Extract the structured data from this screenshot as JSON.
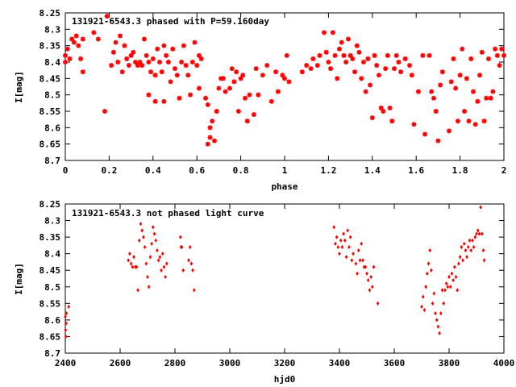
{
  "chart_data": [
    {
      "type": "scatter",
      "title": "131921-6543.3 phased with P=59.160day",
      "xlabel": "phase",
      "ylabel": "I[mag]",
      "xlim": [
        0,
        2
      ],
      "ylim": [
        8.25,
        8.7
      ],
      "y_inverted": true,
      "xticks": [
        0,
        0.2,
        0.4,
        0.6,
        0.8,
        1,
        1.2,
        1.4,
        1.6,
        1.8,
        2
      ],
      "xticklabels": [
        "0",
        "0.2",
        "0.4",
        "0.6",
        "0.8",
        "1",
        "1.2",
        "1.4",
        "1.6",
        "1.8",
        "2"
      ],
      "yticks": [
        8.25,
        8.3,
        8.35,
        8.4,
        8.45,
        8.5,
        8.55,
        8.6,
        8.65,
        8.7
      ],
      "yticklabels": [
        "8.25",
        "8.3",
        "8.35",
        "8.4",
        "8.45",
        "8.5",
        "8.55",
        "8.6",
        "8.65",
        "8.7"
      ],
      "marker": "star",
      "color": "#ff0000",
      "grid": false,
      "points": [
        [
          0.0,
          8.38
        ],
        [
          0.0,
          8.4
        ],
        [
          0.01,
          8.36
        ],
        [
          0.02,
          8.39
        ],
        [
          0.03,
          8.33
        ],
        [
          0.04,
          8.34
        ],
        [
          0.05,
          8.32
        ],
        [
          0.06,
          8.35
        ],
        [
          0.07,
          8.39
        ],
        [
          0.08,
          8.43
        ],
        [
          0.08,
          8.33
        ],
        [
          0.13,
          8.31
        ],
        [
          0.15,
          8.33
        ],
        [
          0.18,
          8.55
        ],
        [
          0.19,
          8.26
        ],
        [
          0.21,
          8.41
        ],
        [
          0.22,
          8.37
        ],
        [
          0.23,
          8.34
        ],
        [
          0.24,
          8.4
        ],
        [
          0.25,
          8.32
        ],
        [
          0.26,
          8.43
        ],
        [
          0.27,
          8.35
        ],
        [
          0.28,
          8.39
        ],
        [
          0.29,
          8.41
        ],
        [
          0.3,
          8.38
        ],
        [
          0.31,
          8.37
        ],
        [
          0.32,
          8.4
        ],
        [
          0.33,
          8.41
        ],
        [
          0.34,
          8.4
        ],
        [
          0.35,
          8.41
        ],
        [
          0.36,
          8.33
        ],
        [
          0.37,
          8.38
        ],
        [
          0.38,
          8.5
        ],
        [
          0.38,
          8.4
        ],
        [
          0.39,
          8.43
        ],
        [
          0.4,
          8.39
        ],
        [
          0.41,
          8.52
        ],
        [
          0.41,
          8.44
        ],
        [
          0.42,
          8.36
        ],
        [
          0.43,
          8.4
        ],
        [
          0.44,
          8.43
        ],
        [
          0.45,
          8.52
        ],
        [
          0.45,
          8.35
        ],
        [
          0.46,
          8.38
        ],
        [
          0.47,
          8.4
        ],
        [
          0.48,
          8.46
        ],
        [
          0.49,
          8.36
        ],
        [
          0.5,
          8.42
        ],
        [
          0.51,
          8.44
        ],
        [
          0.52,
          8.51
        ],
        [
          0.53,
          8.4
        ],
        [
          0.54,
          8.35
        ],
        [
          0.55,
          8.41
        ],
        [
          0.56,
          8.44
        ],
        [
          0.57,
          8.5
        ],
        [
          0.58,
          8.4
        ],
        [
          0.59,
          8.34
        ],
        [
          0.6,
          8.41
        ],
        [
          0.61,
          8.48
        ],
        [
          0.61,
          8.38
        ],
        [
          0.62,
          8.39
        ],
        [
          0.64,
          8.51
        ],
        [
          0.65,
          8.53
        ],
        [
          0.65,
          8.65
        ],
        [
          0.66,
          8.63
        ],
        [
          0.66,
          8.6
        ],
        [
          0.67,
          8.58
        ],
        [
          0.68,
          8.64
        ],
        [
          0.69,
          8.55
        ],
        [
          0.7,
          8.48
        ],
        [
          0.71,
          8.45
        ],
        [
          0.72,
          8.45
        ],
        [
          0.73,
          8.49
        ],
        [
          0.75,
          8.48
        ],
        [
          0.76,
          8.42
        ],
        [
          0.77,
          8.46
        ],
        [
          0.78,
          8.43
        ],
        [
          0.79,
          8.55
        ],
        [
          0.8,
          8.45
        ],
        [
          0.81,
          8.44
        ],
        [
          0.82,
          8.51
        ],
        [
          0.83,
          8.58
        ],
        [
          0.84,
          8.5
        ],
        [
          0.86,
          8.56
        ],
        [
          0.87,
          8.42
        ],
        [
          0.88,
          8.5
        ],
        [
          0.9,
          8.44
        ],
        [
          0.92,
          8.41
        ],
        [
          0.94,
          8.52
        ],
        [
          0.96,
          8.43
        ],
        [
          0.97,
          8.49
        ],
        [
          0.99,
          8.44
        ],
        [
          1.0,
          8.45
        ],
        [
          1.01,
          8.38
        ],
        [
          1.02,
          8.46
        ],
        [
          1.08,
          8.43
        ],
        [
          1.1,
          8.41
        ],
        [
          1.12,
          8.42
        ],
        [
          1.13,
          8.39
        ],
        [
          1.15,
          8.41
        ],
        [
          1.16,
          8.38
        ],
        [
          1.18,
          8.31
        ],
        [
          1.19,
          8.37
        ],
        [
          1.2,
          8.4
        ],
        [
          1.21,
          8.42
        ],
        [
          1.22,
          8.31
        ],
        [
          1.23,
          8.38
        ],
        [
          1.24,
          8.45
        ],
        [
          1.25,
          8.36
        ],
        [
          1.26,
          8.34
        ],
        [
          1.27,
          8.38
        ],
        [
          1.28,
          8.4
        ],
        [
          1.29,
          8.33
        ],
        [
          1.3,
          8.38
        ],
        [
          1.31,
          8.39
        ],
        [
          1.32,
          8.43
        ],
        [
          1.33,
          8.35
        ],
        [
          1.34,
          8.37
        ],
        [
          1.35,
          8.45
        ],
        [
          1.36,
          8.4
        ],
        [
          1.37,
          8.49
        ],
        [
          1.38,
          8.39
        ],
        [
          1.39,
          8.47
        ],
        [
          1.4,
          8.57
        ],
        [
          1.41,
          8.38
        ],
        [
          1.42,
          8.41
        ],
        [
          1.43,
          8.44
        ],
        [
          1.44,
          8.54
        ],
        [
          1.45,
          8.55
        ],
        [
          1.46,
          8.42
        ],
        [
          1.47,
          8.38
        ],
        [
          1.48,
          8.54
        ],
        [
          1.49,
          8.58
        ],
        [
          1.5,
          8.42
        ],
        [
          1.51,
          8.38
        ],
        [
          1.52,
          8.4
        ],
        [
          1.53,
          8.43
        ],
        [
          1.55,
          8.39
        ],
        [
          1.57,
          8.41
        ],
        [
          1.58,
          8.44
        ],
        [
          1.59,
          8.59
        ],
        [
          1.61,
          8.49
        ],
        [
          1.63,
          8.38
        ],
        [
          1.64,
          8.62
        ],
        [
          1.66,
          8.38
        ],
        [
          1.67,
          8.49
        ],
        [
          1.68,
          8.51
        ],
        [
          1.69,
          8.55
        ],
        [
          1.7,
          8.64
        ],
        [
          1.71,
          8.47
        ],
        [
          1.72,
          8.43
        ],
        [
          1.75,
          8.61
        ],
        [
          1.76,
          8.46
        ],
        [
          1.77,
          8.39
        ],
        [
          1.78,
          8.48
        ],
        [
          1.79,
          8.58
        ],
        [
          1.8,
          8.44
        ],
        [
          1.81,
          8.36
        ],
        [
          1.82,
          8.55
        ],
        [
          1.83,
          8.45
        ],
        [
          1.84,
          8.58
        ],
        [
          1.85,
          8.39
        ],
        [
          1.86,
          8.49
        ],
        [
          1.87,
          8.59
        ],
        [
          1.88,
          8.52
        ],
        [
          1.89,
          8.44
        ],
        [
          1.9,
          8.37
        ],
        [
          1.91,
          8.58
        ],
        [
          1.92,
          8.51
        ],
        [
          1.93,
          8.39
        ],
        [
          1.94,
          8.51
        ],
        [
          1.95,
          8.49
        ],
        [
          1.96,
          8.36
        ],
        [
          1.97,
          8.38
        ],
        [
          1.98,
          8.41
        ],
        [
          1.99,
          8.36
        ],
        [
          2.0,
          8.38
        ]
      ]
    },
    {
      "type": "scatter",
      "title": "131921-6543.3 not phased light curve",
      "xlabel": "hjd0",
      "ylabel": "I[mag]",
      "xlim": [
        2400,
        4000
      ],
      "ylim": [
        8.25,
        8.7
      ],
      "y_inverted": true,
      "xticks": [
        2400,
        2600,
        2800,
        3000,
        3200,
        3400,
        3600,
        3800,
        4000
      ],
      "xticklabels": [
        "2400",
        "2600",
        "2800",
        "3000",
        "3200",
        "3400",
        "3600",
        "3800",
        "4000"
      ],
      "yticks": [
        8.25,
        8.3,
        8.35,
        8.4,
        8.45,
        8.5,
        8.55,
        8.6,
        8.65,
        8.7
      ],
      "yticklabels": [
        "8.25",
        "8.3",
        "8.35",
        "8.4",
        "8.45",
        "8.5",
        "8.55",
        "8.6",
        "8.65",
        "8.7"
      ],
      "marker": "diamond",
      "color": "#ff0000",
      "grid": false,
      "points": [
        [
          2400,
          8.59
        ],
        [
          2401,
          8.63
        ],
        [
          2402,
          8.65
        ],
        [
          2403,
          8.61
        ],
        [
          2404,
          8.58
        ],
        [
          2412,
          8.56
        ],
        [
          2630,
          8.42
        ],
        [
          2635,
          8.4
        ],
        [
          2640,
          8.43
        ],
        [
          2645,
          8.44
        ],
        [
          2650,
          8.41
        ],
        [
          2655,
          8.44
        ],
        [
          2660,
          8.44
        ],
        [
          2665,
          8.51
        ],
        [
          2670,
          8.36
        ],
        [
          2675,
          8.31
        ],
        [
          2680,
          8.33
        ],
        [
          2685,
          8.35
        ],
        [
          2690,
          8.38
        ],
        [
          2695,
          8.43
        ],
        [
          2700,
          8.47
        ],
        [
          2705,
          8.5
        ],
        [
          2710,
          8.41
        ],
        [
          2715,
          8.37
        ],
        [
          2720,
          8.32
        ],
        [
          2725,
          8.34
        ],
        [
          2730,
          8.36
        ],
        [
          2735,
          8.39
        ],
        [
          2740,
          8.42
        ],
        [
          2745,
          8.41
        ],
        [
          2750,
          8.45
        ],
        [
          2755,
          8.4
        ],
        [
          2760,
          8.44
        ],
        [
          2765,
          8.47
        ],
        [
          2770,
          8.43
        ],
        [
          2820,
          8.35
        ],
        [
          2822,
          8.38
        ],
        [
          2825,
          8.38
        ],
        [
          2830,
          8.45
        ],
        [
          2850,
          8.42
        ],
        [
          2855,
          8.38
        ],
        [
          2860,
          8.43
        ],
        [
          2865,
          8.45
        ],
        [
          2870,
          8.51
        ],
        [
          3380,
          8.32
        ],
        [
          3385,
          8.37
        ],
        [
          3390,
          8.35
        ],
        [
          3395,
          8.38
        ],
        [
          3400,
          8.4
        ],
        [
          3405,
          8.36
        ],
        [
          3410,
          8.38
        ],
        [
          3415,
          8.34
        ],
        [
          3420,
          8.36
        ],
        [
          3425,
          8.41
        ],
        [
          3430,
          8.33
        ],
        [
          3435,
          8.38
        ],
        [
          3440,
          8.35
        ],
        [
          3445,
          8.42
        ],
        [
          3450,
          8.4
        ],
        [
          3460,
          8.43
        ],
        [
          3465,
          8.46
        ],
        [
          3470,
          8.39
        ],
        [
          3475,
          8.42
        ],
        [
          3480,
          8.37
        ],
        [
          3485,
          8.42
        ],
        [
          3490,
          8.44
        ],
        [
          3495,
          8.44
        ],
        [
          3500,
          8.46
        ],
        [
          3505,
          8.48
        ],
        [
          3510,
          8.51
        ],
        [
          3515,
          8.47
        ],
        [
          3520,
          8.5
        ],
        [
          3525,
          8.44
        ],
        [
          3540,
          8.55
        ],
        [
          3700,
          8.56
        ],
        [
          3705,
          8.53
        ],
        [
          3710,
          8.57
        ],
        [
          3715,
          8.5
        ],
        [
          3720,
          8.46
        ],
        [
          3725,
          8.43
        ],
        [
          3730,
          8.39
        ],
        [
          3735,
          8.45
        ],
        [
          3740,
          8.55
        ],
        [
          3745,
          8.52
        ],
        [
          3750,
          8.58
        ],
        [
          3755,
          8.6
        ],
        [
          3760,
          8.62
        ],
        [
          3765,
          8.64
        ],
        [
          3770,
          8.58
        ],
        [
          3775,
          8.51
        ],
        [
          3780,
          8.55
        ],
        [
          3785,
          8.51
        ],
        [
          3790,
          8.49
        ],
        [
          3795,
          8.5
        ],
        [
          3800,
          8.47
        ],
        [
          3805,
          8.5
        ],
        [
          3810,
          8.46
        ],
        [
          3815,
          8.48
        ],
        [
          3820,
          8.44
        ],
        [
          3825,
          8.47
        ],
        [
          3830,
          8.51
        ],
        [
          3835,
          8.43
        ],
        [
          3840,
          8.41
        ],
        [
          3845,
          8.38
        ],
        [
          3850,
          8.42
        ],
        [
          3855,
          8.37
        ],
        [
          3860,
          8.39
        ],
        [
          3865,
          8.41
        ],
        [
          3870,
          8.38
        ],
        [
          3875,
          8.36
        ],
        [
          3880,
          8.39
        ],
        [
          3885,
          8.36
        ],
        [
          3890,
          8.38
        ],
        [
          3895,
          8.35
        ],
        [
          3900,
          8.34
        ],
        [
          3905,
          8.33
        ],
        [
          3910,
          8.34
        ],
        [
          3915,
          8.26
        ],
        [
          3920,
          8.34
        ],
        [
          3925,
          8.39
        ],
        [
          3928,
          8.42
        ]
      ]
    }
  ]
}
